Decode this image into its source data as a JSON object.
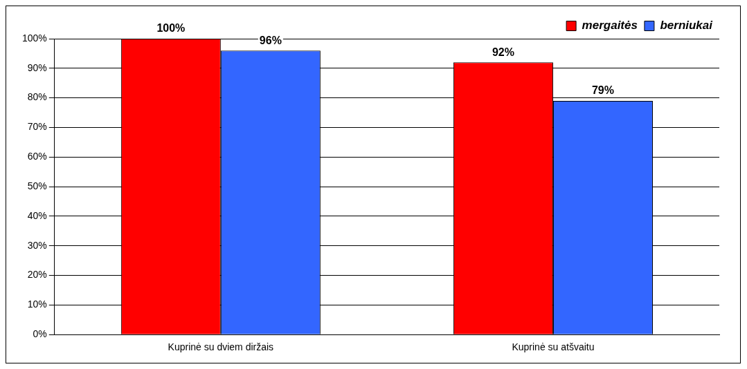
{
  "chart_data": {
    "type": "bar",
    "categories": [
      "Kuprinė su dviem diržais",
      "Kuprinė su atšvaitu"
    ],
    "series": [
      {
        "name": "mergaitės",
        "color": "#ff0000",
        "values": [
          100,
          92
        ],
        "value_labels": [
          "100%",
          "92%"
        ]
      },
      {
        "name": "berniukai",
        "color": "#3366ff",
        "values": [
          96,
          79
        ],
        "value_labels": [
          "96%",
          "79%"
        ]
      }
    ],
    "ylim": [
      0,
      100
    ],
    "yticks": [
      {
        "value": 0,
        "label": "0%"
      },
      {
        "value": 10,
        "label": "10%"
      },
      {
        "value": 20,
        "label": "20%"
      },
      {
        "value": 30,
        "label": "30%"
      },
      {
        "value": 40,
        "label": "40%"
      },
      {
        "value": 50,
        "label": "50%"
      },
      {
        "value": 60,
        "label": "60%"
      },
      {
        "value": 70,
        "label": "70%"
      },
      {
        "value": 80,
        "label": "80%"
      },
      {
        "value": 90,
        "label": "90%"
      },
      {
        "value": 100,
        "label": "100%"
      }
    ],
    "grid": "y",
    "legend": "top right"
  }
}
